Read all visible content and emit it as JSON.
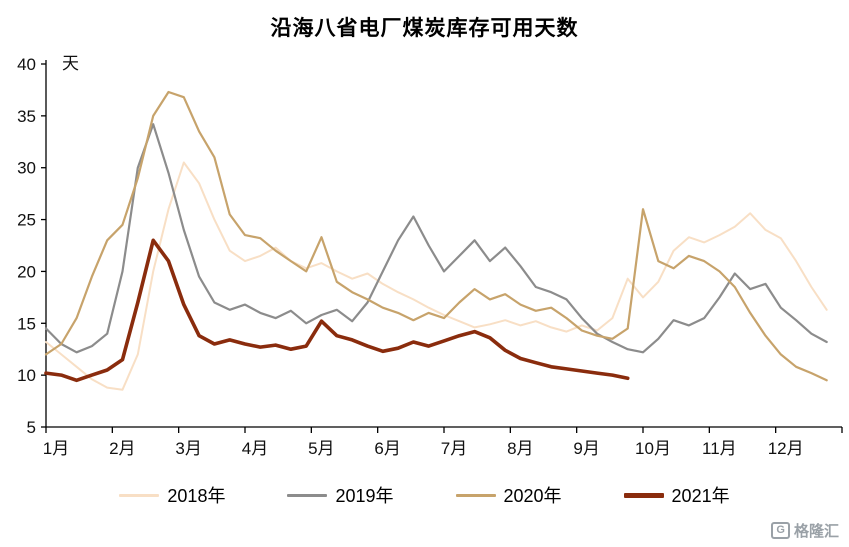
{
  "chart_data": {
    "type": "line",
    "title": "沿海八省电厂煤炭库存可用天数",
    "ylabel": "天",
    "xlabel": "",
    "ylim": [
      5,
      40
    ],
    "yticks": [
      5,
      10,
      15,
      20,
      25,
      30,
      35,
      40
    ],
    "xlim": [
      1,
      13
    ],
    "xticks": [
      {
        "x": 1,
        "label": "1月"
      },
      {
        "x": 2,
        "label": "2月"
      },
      {
        "x": 3,
        "label": "3月"
      },
      {
        "x": 4,
        "label": "4月"
      },
      {
        "x": 5,
        "label": "5月"
      },
      {
        "x": 6,
        "label": "6月"
      },
      {
        "x": 7,
        "label": "7月"
      },
      {
        "x": 8,
        "label": "8月"
      },
      {
        "x": 9,
        "label": "9月"
      },
      {
        "x": 10,
        "label": "10月"
      },
      {
        "x": 11,
        "label": "11月"
      },
      {
        "x": 12,
        "label": "12月"
      }
    ],
    "grid": false,
    "legend_position": "bottom",
    "axis_color": "#000000",
    "series": [
      {
        "name": "2018年",
        "color": "#f8dfc5",
        "line_width": 2,
        "x_start": 1,
        "x_step": 0.23077,
        "values": [
          13.2,
          12.0,
          10.8,
          9.6,
          8.8,
          8.6,
          12.0,
          20.0,
          26.0,
          30.5,
          28.5,
          25.0,
          22.0,
          21.0,
          21.5,
          22.3,
          21.0,
          20.3,
          20.8,
          20.0,
          19.3,
          19.8,
          18.8,
          18.0,
          17.3,
          16.5,
          15.8,
          15.2,
          14.6,
          14.9,
          15.3,
          14.8,
          15.2,
          14.6,
          14.2,
          14.8,
          14.3,
          15.5,
          19.3,
          17.5,
          19.0,
          22.0,
          23.3,
          22.8,
          23.5,
          24.3,
          25.6,
          24.0,
          23.2,
          21.0,
          18.5,
          16.3
        ]
      },
      {
        "name": "2019年",
        "color": "#8c8c8c",
        "line_width": 2.2,
        "x_start": 1,
        "x_step": 0.23077,
        "values": [
          14.5,
          13.0,
          12.2,
          12.8,
          14.0,
          20.0,
          30.0,
          34.2,
          29.5,
          24.0,
          19.5,
          17.0,
          16.3,
          16.8,
          16.0,
          15.5,
          16.2,
          15.0,
          15.8,
          16.3,
          15.2,
          17.0,
          20.0,
          23.0,
          25.3,
          22.5,
          20.0,
          21.5,
          23.0,
          21.0,
          22.3,
          20.5,
          18.5,
          18.0,
          17.3,
          15.5,
          14.0,
          13.2,
          12.5,
          12.2,
          13.5,
          15.3,
          14.8,
          15.5,
          17.5,
          19.8,
          18.3,
          18.8,
          16.5,
          15.3,
          14.0,
          13.2
        ]
      },
      {
        "name": "2020年",
        "color": "#c7a36b",
        "line_width": 2.2,
        "x_start": 1,
        "x_step": 0.23077,
        "values": [
          12.0,
          13.0,
          15.5,
          19.5,
          23.0,
          24.5,
          29.0,
          35.0,
          37.3,
          36.8,
          33.5,
          31.0,
          25.5,
          23.5,
          23.2,
          22.0,
          21.0,
          20.0,
          23.3,
          19.0,
          18.0,
          17.3,
          16.5,
          16.0,
          15.3,
          16.0,
          15.5,
          17.0,
          18.3,
          17.3,
          17.8,
          16.8,
          16.2,
          16.5,
          15.5,
          14.3,
          13.8,
          13.5,
          14.5,
          26.0,
          21.0,
          20.3,
          21.5,
          21.0,
          20.0,
          18.5,
          16.0,
          13.8,
          12.0,
          10.8,
          10.2,
          9.5
        ]
      },
      {
        "name": "2021年",
        "color": "#8a2c0d",
        "line_width": 3.6,
        "x_start": 1,
        "x_step": 0.23077,
        "values": [
          10.2,
          10.0,
          9.5,
          10.0,
          10.5,
          11.5,
          17.0,
          23.0,
          21.0,
          16.8,
          13.8,
          13.0,
          13.4,
          13.0,
          12.7,
          12.9,
          12.5,
          12.8,
          15.2,
          13.8,
          13.4,
          12.8,
          12.3,
          12.6,
          13.2,
          12.8,
          13.3,
          13.8,
          14.2,
          13.6,
          12.4,
          11.6,
          11.2,
          10.8,
          10.6,
          10.4,
          10.2,
          10.0,
          9.7
        ]
      }
    ]
  },
  "logo": {
    "icon_letter": "G",
    "text": "格隆汇"
  }
}
